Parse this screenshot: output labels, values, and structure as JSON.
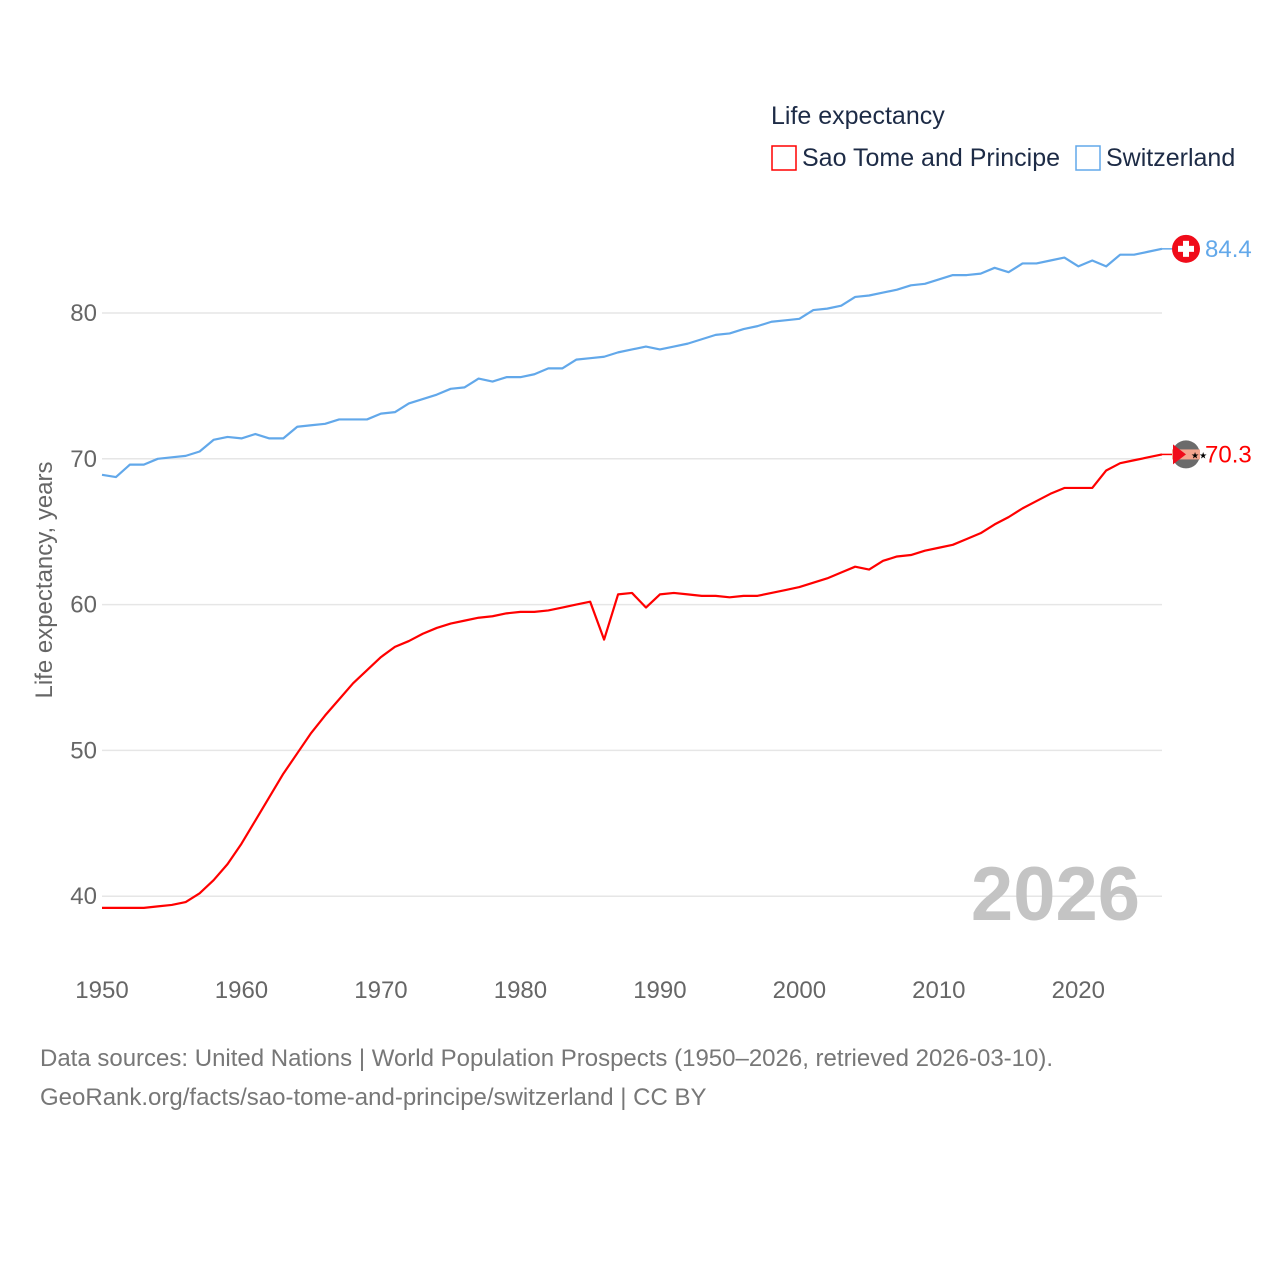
{
  "chart_data": {
    "type": "line",
    "legend_title": "Life expectancy",
    "ylabel": "Life expectancy, years",
    "xlabel": "",
    "xlim": [
      1950,
      2026
    ],
    "ylim": [
      35,
      88
    ],
    "yticks": [
      40,
      50,
      60,
      70,
      80
    ],
    "xticks": [
      1950,
      1960,
      1970,
      1980,
      1990,
      2000,
      2010,
      2020
    ],
    "grid": true,
    "legend_position": "top-right",
    "year_watermark": "2026",
    "series": [
      {
        "name": "Sao Tome and Principe",
        "color": "#ff0000",
        "end_label": "70.3",
        "flag_icon": "sao-tome-flag-icon",
        "values": [
          39.2,
          39.2,
          39.2,
          39.2,
          39.3,
          39.4,
          39.6,
          40.2,
          41.1,
          42.2,
          43.6,
          45.2,
          46.8,
          48.4,
          49.8,
          51.2,
          52.4,
          53.5,
          54.6,
          55.5,
          56.4,
          57.1,
          57.5,
          58.0,
          58.4,
          58.7,
          58.9,
          59.1,
          59.2,
          59.4,
          59.5,
          59.5,
          59.6,
          59.8,
          60.0,
          60.2,
          57.6,
          60.7,
          60.8,
          59.8,
          60.7,
          60.8,
          60.7,
          60.6,
          60.6,
          60.5,
          60.6,
          60.6,
          60.8,
          61.0,
          61.2,
          61.5,
          61.8,
          62.2,
          62.6,
          62.4,
          63.0,
          63.3,
          63.4,
          63.7,
          63.9,
          64.1,
          64.5,
          64.9,
          65.5,
          66.0,
          66.6,
          67.1,
          67.6,
          68.0,
          68.0,
          68.0,
          69.2,
          69.7,
          69.9,
          70.1,
          70.3
        ]
      },
      {
        "name": "Switzerland",
        "color": "#62a8ea",
        "end_label": "84.4",
        "flag_icon": "switzerland-flag-icon",
        "values": [
          68.9,
          68.75,
          69.6,
          69.6,
          70.0,
          70.1,
          70.2,
          70.5,
          71.3,
          71.5,
          71.4,
          71.7,
          71.4,
          71.4,
          72.2,
          72.3,
          72.4,
          72.7,
          72.7,
          72.7,
          73.1,
          73.2,
          73.8,
          74.1,
          74.4,
          74.8,
          74.9,
          75.5,
          75.3,
          75.6,
          75.6,
          75.8,
          76.2,
          76.2,
          76.8,
          76.9,
          77.0,
          77.3,
          77.5,
          77.7,
          77.5,
          77.7,
          77.9,
          78.2,
          78.5,
          78.6,
          78.9,
          79.1,
          79.4,
          79.5,
          79.6,
          80.2,
          80.3,
          80.5,
          81.1,
          81.2,
          81.4,
          81.6,
          81.9,
          82.0,
          82.3,
          82.6,
          82.6,
          82.7,
          83.1,
          82.8,
          83.4,
          83.4,
          83.6,
          83.8,
          83.2,
          83.6,
          83.2,
          84.0,
          84.0,
          84.2,
          84.4
        ]
      }
    ]
  },
  "footer": {
    "line1": "Data sources: United Nations | World Population Prospects (1950–2026, retrieved 2026-03-10).",
    "line2": "GeoRank.org/facts/sao-tome-and-principe/switzerland | CC BY"
  }
}
